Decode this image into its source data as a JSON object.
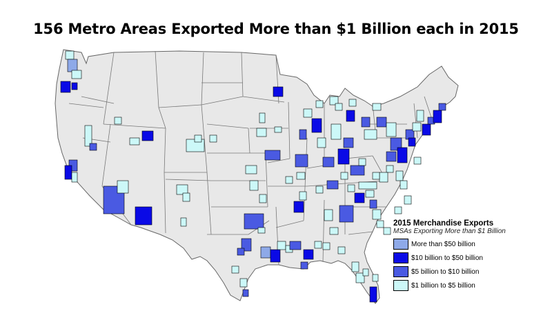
{
  "title": "156 Metro Areas Exported More than $1 Billion each in 2015",
  "legend": {
    "title": "2015 Merchandise Exports",
    "subtitle": "MSAs Exporting More than $1 Billion",
    "items": [
      {
        "label": "More than $50 billion",
        "color": "#8ea9e8"
      },
      {
        "label": "$10 billion to $50 billion",
        "color": "#0a0ae6"
      },
      {
        "label": "$5 billion to $10 billion",
        "color": "#4a5ae2"
      },
      {
        "label": "$1 billion to $5 billion",
        "color": "#ccf8f8"
      }
    ]
  },
  "map_colors": {
    "land": "#e8e8e8",
    "border": "#777777"
  }
}
